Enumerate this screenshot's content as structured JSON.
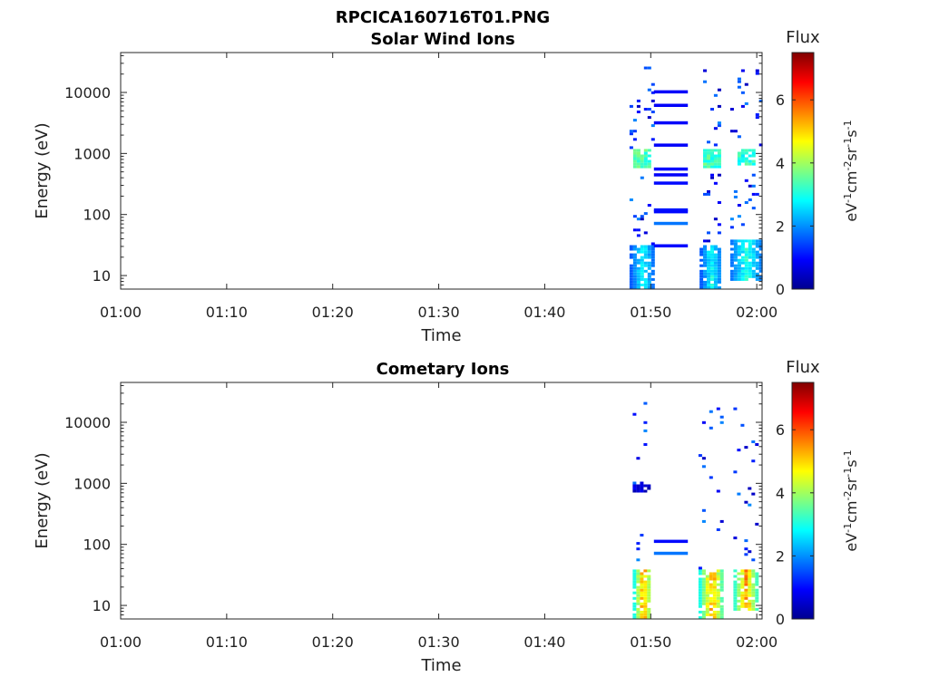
{
  "figure": {
    "filename": "RPCICA160716T01.PNG"
  },
  "colormap": {
    "name": "jet",
    "title": "Flux",
    "label_html": "eV-1cm-2sr-1s-1",
    "ticks": [
      0,
      2,
      4,
      6
    ],
    "range": [
      0,
      7.5
    ]
  },
  "chart_data": [
    {
      "type": "heatmap",
      "title": "Solar Wind Ions",
      "xlabel": "Time",
      "ylabel": "Energy (eV)",
      "x_ticks": [
        "01:00",
        "01:10",
        "01:20",
        "01:30",
        "01:40",
        "01:50",
        "02:00"
      ],
      "x_tick_minutes": [
        0,
        10,
        20,
        30,
        40,
        50,
        60
      ],
      "xlim_minutes": [
        0,
        60.5
      ],
      "y_scale": "log",
      "ylim": [
        6,
        45000
      ],
      "y_ticks": [
        10,
        100,
        1000,
        10000
      ],
      "y_tick_labels": [
        "10",
        "100",
        "1000",
        "10000"
      ],
      "bursts": [
        {
          "start_min": 48.0,
          "end_min": 50.2,
          "low_e": [
            6,
            30
          ],
          "low_flux": [
            1.6,
            3.2
          ],
          "hump_e": [
            550,
            1100
          ],
          "hump_flux": [
            2.8,
            3.8
          ],
          "scatter": 0.32
        },
        {
          "start_min": 54.6,
          "end_min": 56.6,
          "low_e": [
            6,
            30
          ],
          "low_flux": [
            1.6,
            3.2
          ],
          "hump_e": [
            550,
            1100
          ],
          "hump_flux": [
            2.8,
            3.8
          ],
          "scatter": 0.32
        },
        {
          "start_min": 57.5,
          "end_min": 60.3,
          "low_e": [
            8,
            35
          ],
          "low_flux": [
            1.8,
            3.4
          ],
          "hump_e": [
            600,
            1100
          ],
          "hump_flux": [
            2.6,
            3.6
          ],
          "scatter": 0.32
        }
      ],
      "lines": [
        {
          "start_min": 50.3,
          "end_min": 53.5,
          "energy": 10300,
          "flux": 0.9
        },
        {
          "start_min": 50.3,
          "end_min": 53.5,
          "energy": 6200,
          "flux": 0.9
        },
        {
          "start_min": 50.3,
          "end_min": 53.5,
          "energy": 3200,
          "flux": 0.9
        },
        {
          "start_min": 50.3,
          "end_min": 53.5,
          "energy": 1380,
          "flux": 0.9
        },
        {
          "start_min": 50.3,
          "end_min": 53.5,
          "energy": 560,
          "flux": 1.0
        },
        {
          "start_min": 50.3,
          "end_min": 53.5,
          "energy": 450,
          "flux": 0.9
        },
        {
          "start_min": 50.3,
          "end_min": 53.5,
          "energy": 330,
          "flux": 1.0
        },
        {
          "start_min": 50.3,
          "end_min": 53.5,
          "energy": 120,
          "flux": 1.1
        },
        {
          "start_min": 50.3,
          "end_min": 53.5,
          "energy": 112,
          "flux": 1.0
        },
        {
          "start_min": 50.3,
          "end_min": 53.5,
          "energy": 72,
          "flux": 1.8
        },
        {
          "start_min": 50.3,
          "end_min": 53.5,
          "energy": 31,
          "flux": 1.0
        }
      ]
    },
    {
      "type": "heatmap",
      "title": "Cometary Ions",
      "xlabel": "Time",
      "ylabel": "Energy (eV)",
      "x_ticks": [
        "01:00",
        "01:10",
        "01:20",
        "01:30",
        "01:40",
        "01:50",
        "02:00"
      ],
      "x_tick_minutes": [
        0,
        10,
        20,
        30,
        40,
        50,
        60
      ],
      "xlim_minutes": [
        0,
        60.5
      ],
      "y_scale": "log",
      "ylim": [
        6,
        45000
      ],
      "y_ticks": [
        10,
        100,
        1000,
        10000
      ],
      "y_tick_labels": [
        "10",
        "100",
        "1000",
        "10000"
      ],
      "bursts": [
        {
          "start_min": 48.3,
          "end_min": 50.0,
          "low_e": [
            6,
            35
          ],
          "low_flux": [
            3.0,
            6.2
          ],
          "hump_e": [
            650,
            900
          ],
          "hump_flux": [
            0.3,
            1.0
          ],
          "scatter": 0.2
        },
        {
          "start_min": 54.5,
          "end_min": 56.8,
          "low_e": [
            6,
            35
          ],
          "low_flux": [
            3.0,
            6.0
          ],
          "hump_e": [
            0,
            0
          ],
          "hump_flux": [
            0,
            0
          ],
          "scatter": 0.22
        },
        {
          "start_min": 57.8,
          "end_min": 59.9,
          "low_e": [
            8,
            38
          ],
          "low_flux": [
            3.2,
            6.0
          ],
          "hump_e": [
            0,
            0
          ],
          "hump_flux": [
            0,
            0
          ],
          "scatter": 0.22
        }
      ],
      "lines": [
        {
          "start_min": 50.3,
          "end_min": 53.5,
          "energy": 113,
          "flux": 1.0
        },
        {
          "start_min": 50.3,
          "end_min": 53.5,
          "energy": 72,
          "flux": 1.8
        }
      ]
    }
  ]
}
